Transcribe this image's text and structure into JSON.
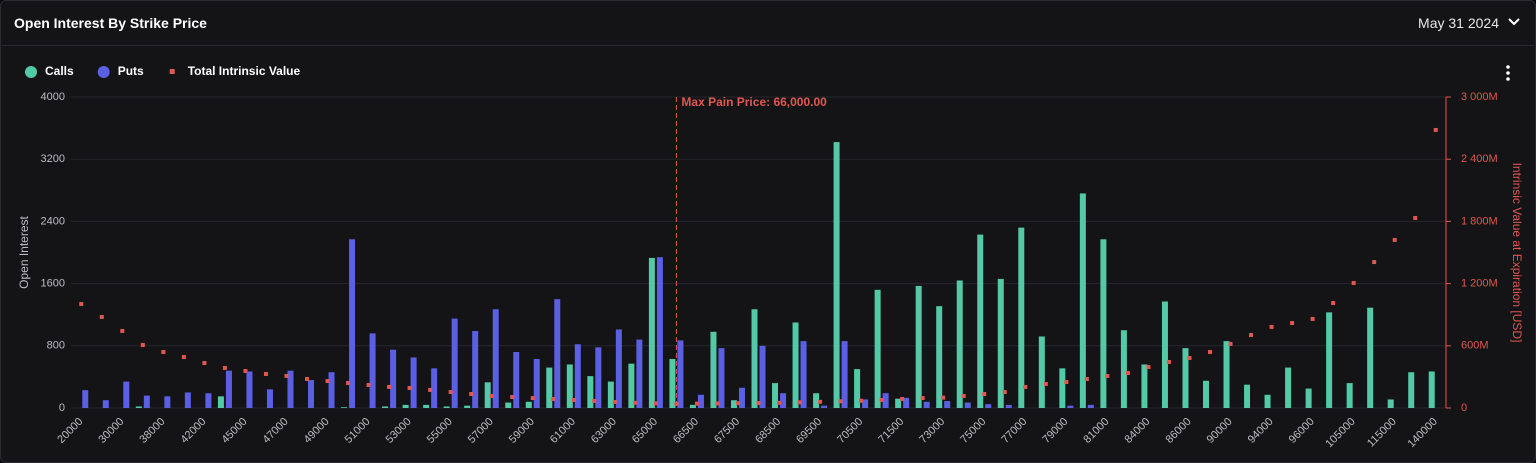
{
  "header": {
    "title": "Open Interest By Strike Price",
    "date": "May 31 2024"
  },
  "chart_data": {
    "type": "bar",
    "categories": [
      "20000",
      null,
      "30000",
      null,
      "38000",
      null,
      "42000",
      null,
      "45000",
      null,
      "47000",
      null,
      "49000",
      null,
      "51000",
      null,
      "53000",
      null,
      "55000",
      null,
      "57000",
      null,
      "59000",
      null,
      "61000",
      null,
      "63000",
      null,
      "65000",
      null,
      "66500",
      null,
      "67500",
      null,
      "68500",
      null,
      "69500",
      null,
      "70500",
      null,
      "71500",
      null,
      "73000",
      null,
      "75000",
      null,
      "77000",
      null,
      "79000",
      null,
      "81000",
      null,
      "84000",
      null,
      "86000",
      null,
      "90000",
      null,
      "94000",
      null,
      "96000",
      null,
      "105000",
      null,
      "115000",
      null,
      "140000"
    ],
    "series": [
      {
        "name": "Calls",
        "color": "#53c9a8",
        "values": [
          0,
          0,
          0,
          20,
          0,
          0,
          0,
          150,
          0,
          0,
          0,
          0,
          0,
          10,
          0,
          20,
          40,
          40,
          20,
          30,
          330,
          70,
          80,
          520,
          560,
          410,
          340,
          570,
          1930,
          630,
          40,
          980,
          100,
          1270,
          320,
          1100,
          190,
          3420,
          500,
          1520,
          120,
          1570,
          1310,
          1640,
          2230,
          1660,
          2320,
          920,
          510,
          2760,
          2170,
          1000,
          560,
          1370,
          770,
          350,
          860,
          300,
          170,
          520,
          250,
          1230,
          320,
          1290,
          110,
          460,
          470
        ]
      },
      {
        "name": "Puts",
        "color": "#5b5fe3",
        "values": [
          230,
          100,
          340,
          160,
          150,
          200,
          190,
          480,
          470,
          240,
          480,
          360,
          460,
          2170,
          960,
          750,
          650,
          510,
          1150,
          990,
          1270,
          720,
          630,
          1400,
          820,
          780,
          1010,
          880,
          1940,
          870,
          170,
          770,
          260,
          800,
          190,
          860,
          30,
          860,
          110,
          190,
          130,
          80,
          90,
          70,
          50,
          40,
          0,
          0,
          30,
          40,
          0,
          0,
          0,
          0,
          0,
          0,
          0,
          0,
          0,
          0,
          0,
          0,
          0,
          0,
          0,
          0,
          0
        ]
      },
      {
        "name": "Total Intrinsic Value",
        "color": "#e0574f",
        "axis": "y2",
        "values": [
          1003,
          878,
          743,
          608,
          540,
          492,
          434,
          386,
          357,
          328,
          309,
          280,
          260,
          241,
          222,
          203,
          193,
          174,
          154,
          135,
          116,
          106,
          96,
          87,
          77,
          68,
          58,
          50,
          45,
          40,
          42,
          44,
          46,
          48,
          50,
          55,
          60,
          65,
          70,
          77,
          87,
          96,
          100,
          116,
          135,
          154,
          203,
          232,
          251,
          280,
          309,
          338,
          395,
          444,
          482,
          540,
          618,
          704,
          782,
          820,
          859,
          1013,
          1206,
          1408,
          1621,
          1833,
          2682
        ]
      }
    ],
    "ylabel": "Open Interest",
    "y2label": "Intrinsic Value at Expiration [USD]",
    "ylim": [
      0,
      4000
    ],
    "yticks": [
      0,
      800,
      1600,
      2400,
      3200,
      4000
    ],
    "y2lim": [
      0,
      3000
    ],
    "y2ticks": [
      {
        "value": 0,
        "label": "0"
      },
      {
        "value": 600,
        "label": "600M"
      },
      {
        "value": 1200,
        "label": "1 200M"
      },
      {
        "value": 1800,
        "label": "1 800M"
      },
      {
        "value": 2400,
        "label": "2 400M"
      },
      {
        "value": 3000,
        "label": "3 000M"
      }
    ],
    "grid": true,
    "annotation": {
      "text": "Max Pain Price: 66,000.00",
      "color": "#e0574f"
    }
  }
}
